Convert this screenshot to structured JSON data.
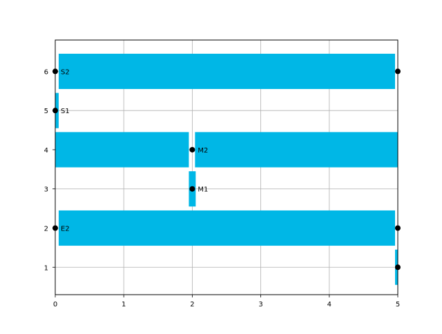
{
  "chart_data": {
    "type": "bar",
    "orientation": "horizontal",
    "title": "",
    "xlabel": "",
    "ylabel": "",
    "xlim": [
      0,
      5
    ],
    "ylim": [
      0.3,
      6.8
    ],
    "xticks": [
      "0",
      "1",
      "2",
      "3",
      "4",
      "5"
    ],
    "yticks": [
      "1",
      "2",
      "3",
      "4",
      "5",
      "6"
    ],
    "grid": true,
    "bar_color": "#00b7e6",
    "bars": [
      {
        "y": 1,
        "x_start": 4.96,
        "x_end": 5.0
      },
      {
        "y": 2,
        "x_start": 0.05,
        "x_end": 4.96
      },
      {
        "y": 3,
        "x_start": 1.95,
        "x_end": 2.05
      },
      {
        "y": 4,
        "x_start": 0.0,
        "x_end": 1.95
      },
      {
        "y": 4,
        "x_start": 2.04,
        "x_end": 5.0
      },
      {
        "y": 5,
        "x_start": 0.0,
        "x_end": 0.05
      },
      {
        "y": 6,
        "x_start": 0.05,
        "x_end": 4.96
      }
    ],
    "points": [
      {
        "x": 5,
        "y": 1,
        "label": ""
      },
      {
        "x": 0,
        "y": 2,
        "label": "E2"
      },
      {
        "x": 5,
        "y": 2,
        "label": ""
      },
      {
        "x": 2,
        "y": 3,
        "label": "M1"
      },
      {
        "x": 2,
        "y": 4,
        "label": "M2"
      },
      {
        "x": 0,
        "y": 5,
        "label": "S1"
      },
      {
        "x": 0,
        "y": 6,
        "label": "S2"
      },
      {
        "x": 5,
        "y": 6,
        "label": ""
      }
    ],
    "point_color": "#000000"
  }
}
